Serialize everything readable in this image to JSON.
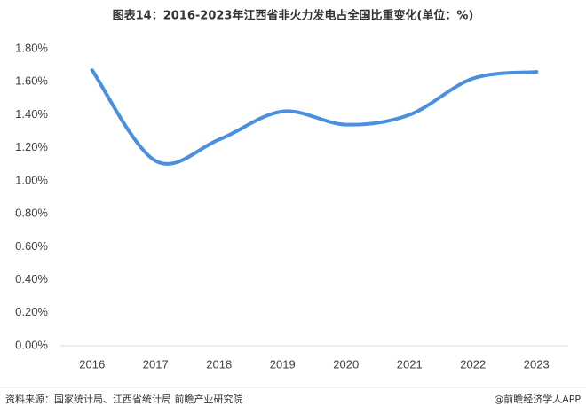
{
  "chart_data": {
    "type": "line",
    "title": "图表14：2016-2023年江西省非火力发电占全国比重变化(单位：%)",
    "categories": [
      "2016",
      "2017",
      "2018",
      "2019",
      "2020",
      "2021",
      "2022",
      "2023"
    ],
    "values": [
      1.67,
      1.12,
      1.25,
      1.42,
      1.34,
      1.4,
      1.62,
      1.66
    ],
    "color": "#4a8fe0",
    "ylim": [
      0,
      1.8
    ],
    "yticks": [
      {
        "value": 0,
        "label": "0.00%"
      },
      {
        "value": 0.2,
        "label": "0.20%"
      },
      {
        "value": 0.4,
        "label": "0.40%"
      },
      {
        "value": 0.6,
        "label": "0.60%"
      },
      {
        "value": 0.8,
        "label": "0.80%"
      },
      {
        "value": 1.0,
        "label": "1.00%"
      },
      {
        "value": 1.2,
        "label": "1.20%"
      },
      {
        "value": 1.4,
        "label": "1.40%"
      },
      {
        "value": 1.6,
        "label": "1.60%"
      },
      {
        "value": 1.8,
        "label": "1.80%"
      }
    ],
    "grid": false,
    "source": "资料来源：国家统计局、江西省统计局 前瞻产业研究院",
    "credit": "@前瞻经济学人APP"
  }
}
